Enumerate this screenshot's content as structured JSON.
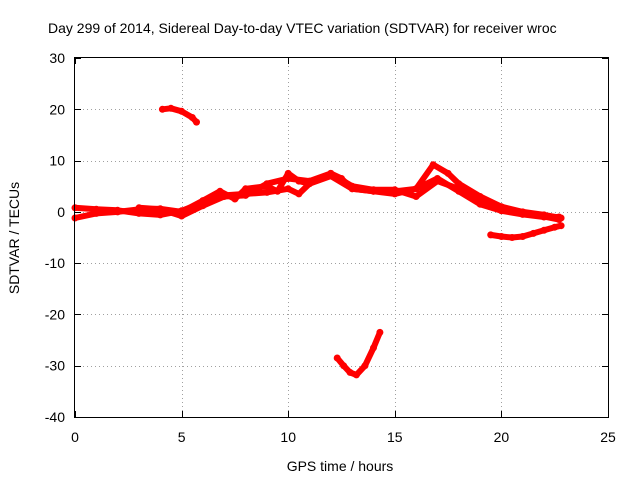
{
  "chart_data": {
    "type": "scatter",
    "title": "Day 299 of 2014, Sidereal Day-to-day VTEC variation (SDTVAR) for receiver wroc",
    "xlabel": "GPS time / hours",
    "ylabel": "SDTVAR / TECUs",
    "xlim": [
      0,
      25
    ],
    "ylim": [
      -40,
      30
    ],
    "xticks": [
      0,
      5,
      10,
      15,
      20,
      25
    ],
    "yticks": [
      -40,
      -30,
      -20,
      -10,
      0,
      10,
      20,
      30
    ],
    "grid": true,
    "color": "#ff0000",
    "series": [
      {
        "name": "segment-1",
        "points": [
          [
            0,
            0.8
          ],
          [
            1,
            0.5
          ],
          [
            2,
            0.3
          ],
          [
            3,
            -0.3
          ],
          [
            4,
            -0.6
          ],
          [
            5,
            0.2
          ],
          [
            6,
            1.8
          ],
          [
            7,
            3.2
          ],
          [
            8,
            3.5
          ],
          [
            9,
            3.8
          ],
          [
            10,
            4.5
          ],
          [
            10.5,
            3.5
          ],
          [
            11,
            5.5
          ],
          [
            12,
            7.5
          ],
          [
            12.5,
            6.5
          ],
          [
            13,
            4.5
          ],
          [
            14,
            4.0
          ],
          [
            15,
            4.0
          ],
          [
            16,
            4.5
          ],
          [
            17,
            6.5
          ],
          [
            18,
            4.0
          ],
          [
            19,
            1.5
          ],
          [
            20,
            0.2
          ],
          [
            21,
            -0.5
          ],
          [
            22,
            -1.0
          ],
          [
            22.7,
            -1.0
          ]
        ]
      },
      {
        "name": "segment-2",
        "points": [
          [
            0,
            -1.2
          ],
          [
            1,
            -0.3
          ],
          [
            2,
            0
          ],
          [
            3,
            0.5
          ],
          [
            4,
            0.6
          ],
          [
            5,
            0
          ],
          [
            6,
            2.2
          ],
          [
            6.8,
            4.0
          ],
          [
            7.5,
            2.5
          ],
          [
            8,
            4.5
          ],
          [
            9,
            5.0
          ],
          [
            9.5,
            4.0
          ],
          [
            10,
            7.5
          ],
          [
            10.5,
            6.0
          ],
          [
            11,
            5.5
          ],
          [
            12,
            7.0
          ],
          [
            13,
            4.5
          ],
          [
            14,
            4.0
          ],
          [
            15,
            3.5
          ],
          [
            16,
            4.5
          ],
          [
            16.8,
            9.2
          ],
          [
            17.5,
            7.5
          ],
          [
            18,
            5.5
          ],
          [
            19,
            3.0
          ],
          [
            20,
            1.0
          ],
          [
            21,
            0
          ],
          [
            22,
            -0.6
          ],
          [
            22.8,
            -1.2
          ]
        ]
      },
      {
        "name": "segment-3",
        "points": [
          [
            3,
            0.8
          ],
          [
            4,
            0.5
          ],
          [
            5,
            -0.8
          ],
          [
            6,
            1.2
          ],
          [
            7,
            3.0
          ],
          [
            8,
            3.2
          ],
          [
            9,
            5.5
          ],
          [
            10,
            6.5
          ],
          [
            11,
            6.0
          ],
          [
            12,
            7.5
          ],
          [
            13,
            5.0
          ],
          [
            14,
            4.3
          ],
          [
            15,
            4.3
          ],
          [
            16,
            3.0
          ],
          [
            17,
            6.0
          ],
          [
            18,
            4.5
          ],
          [
            19,
            2.5
          ],
          [
            20,
            0.6
          ],
          [
            21,
            -0.3
          ],
          [
            22,
            -0.9
          ],
          [
            22.7,
            -1.5
          ]
        ]
      },
      {
        "name": "segment-4",
        "points": [
          [
            19.5,
            -4.5
          ],
          [
            20,
            -4.8
          ],
          [
            20.5,
            -5.0
          ],
          [
            21,
            -4.8
          ],
          [
            21.5,
            -4.2
          ],
          [
            22,
            -3.6
          ],
          [
            22.5,
            -3.0
          ],
          [
            22.8,
            -2.7
          ]
        ]
      },
      {
        "name": "segment-5",
        "points": [
          [
            4.1,
            20.0
          ],
          [
            4.5,
            20.2
          ],
          [
            5,
            19.6
          ],
          [
            5.5,
            18.4
          ],
          [
            5.7,
            17.5
          ]
        ]
      },
      {
        "name": "segment-6",
        "points": [
          [
            12.3,
            -28.5
          ],
          [
            12.6,
            -30.0
          ],
          [
            12.9,
            -31.3
          ],
          [
            13.2,
            -31.8
          ],
          [
            13.6,
            -30.0
          ],
          [
            14.0,
            -26.5
          ],
          [
            14.3,
            -23.5
          ]
        ]
      }
    ]
  }
}
